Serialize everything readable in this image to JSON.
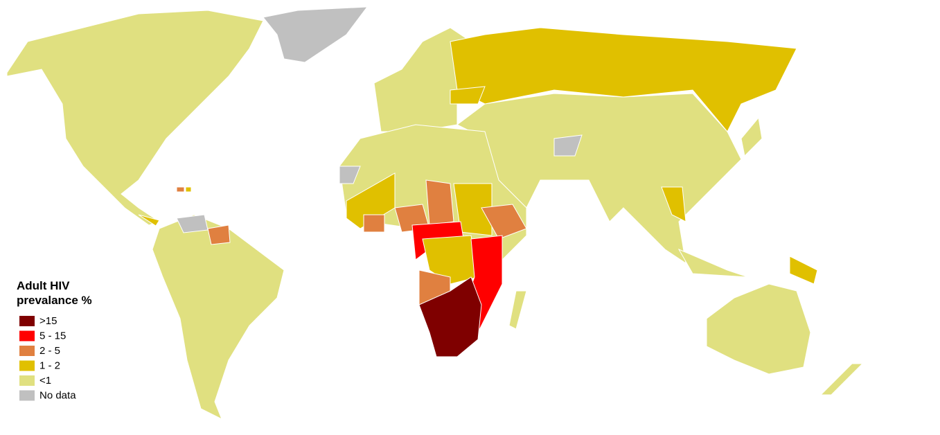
{
  "legend": {
    "title": "Adult HIV prevalance %",
    "items": [
      {
        "label": ">15",
        "color": "#7f0000"
      },
      {
        "label": "5 - 15",
        "color": "#ff0000"
      },
      {
        "label": "2 - 5",
        "color": "#e08040"
      },
      {
        "label": "1 - 2",
        "color": "#e0c000"
      },
      {
        "label": "<1",
        "color": "#e0e080"
      },
      {
        "label": "No data",
        "color": "#c0c0c0"
      }
    ]
  }
}
